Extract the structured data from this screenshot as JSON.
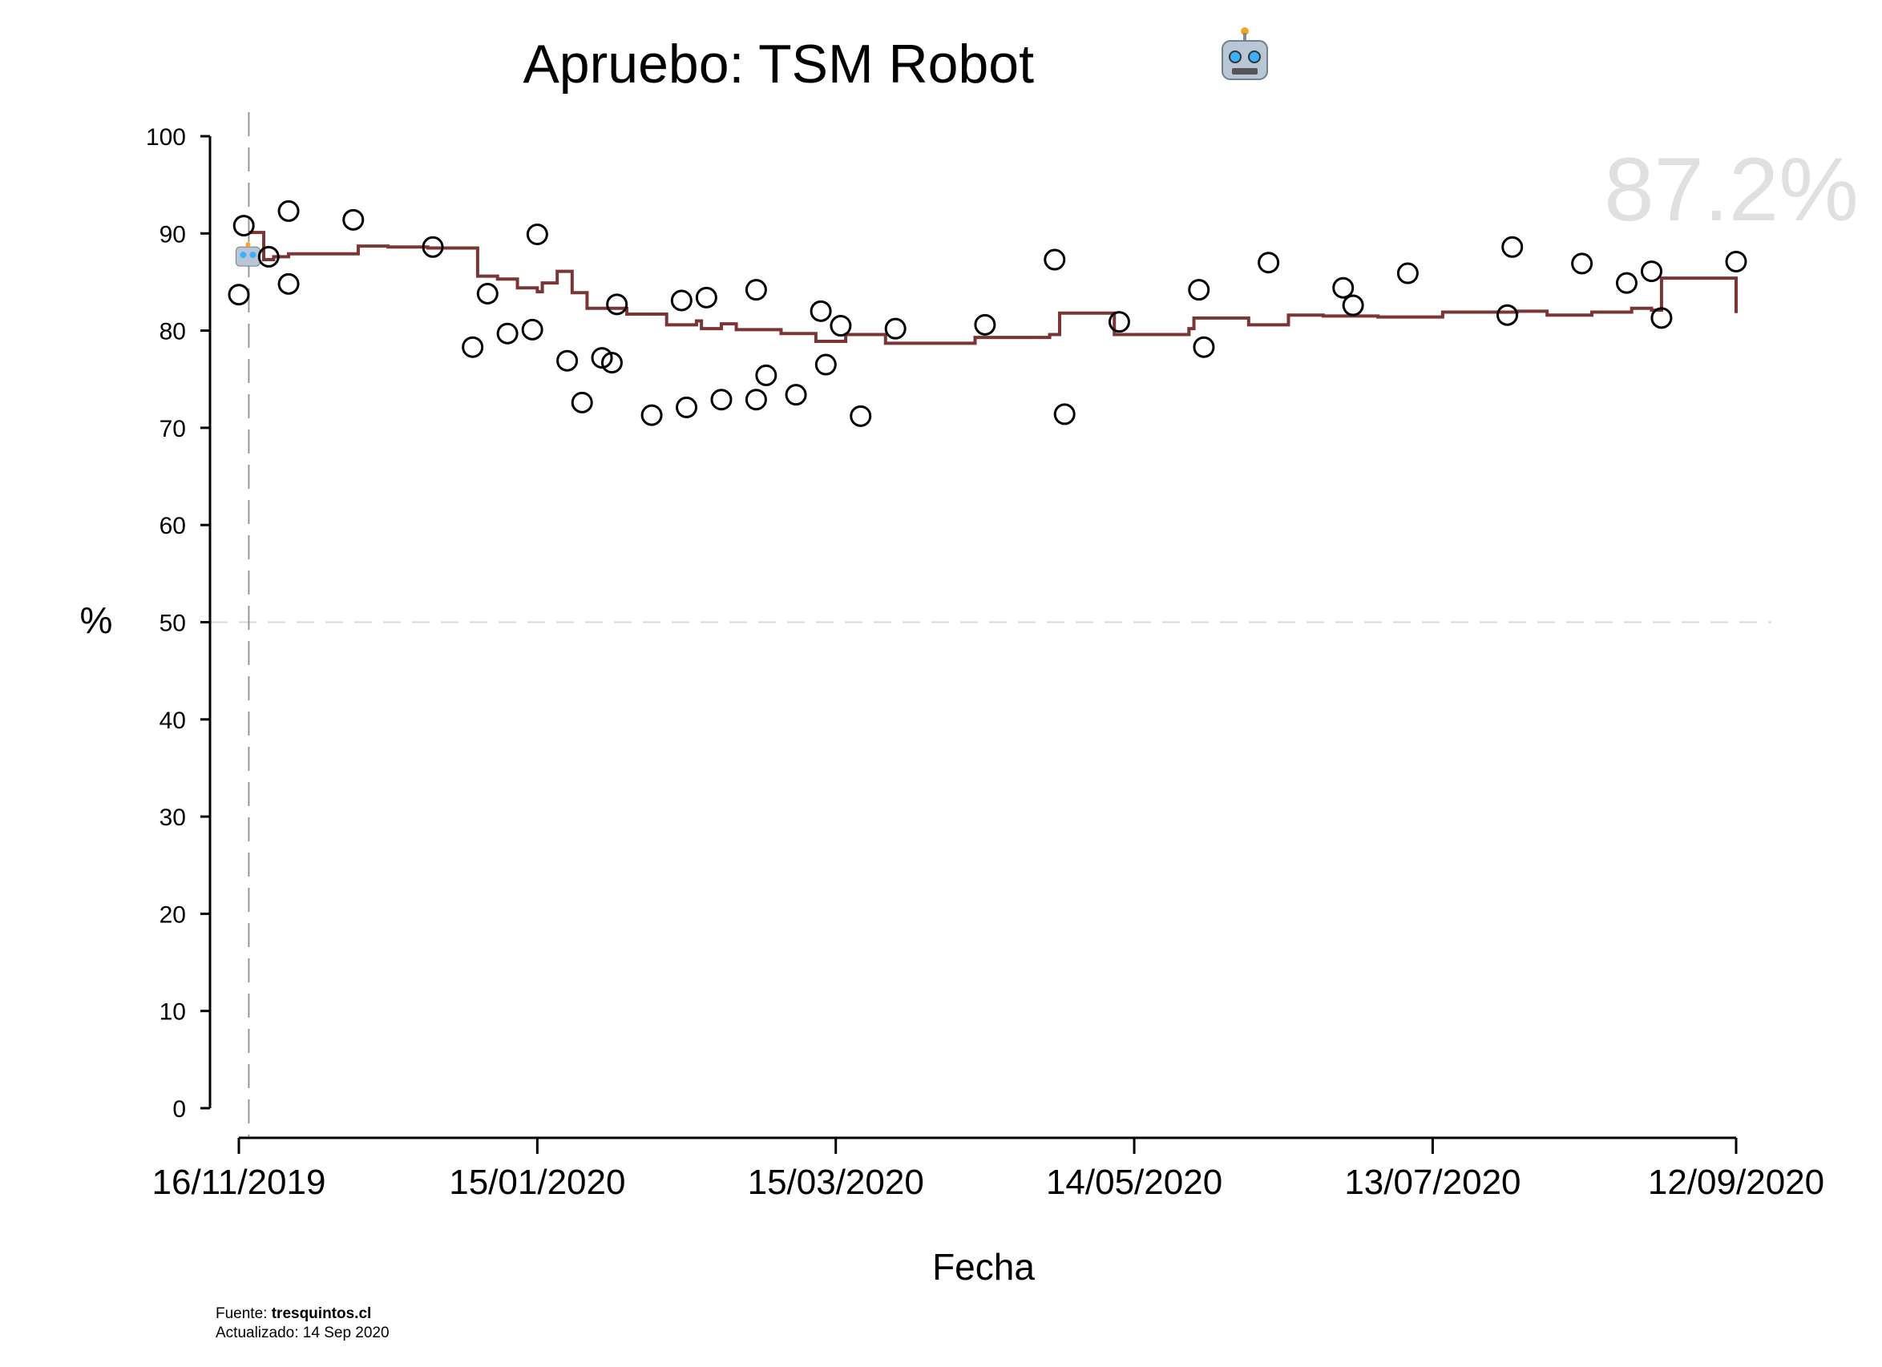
{
  "chart_data": {
    "type": "scatter",
    "title": "Apruebo: TSM Robot",
    "title_icon": "robot-icon",
    "xlabel": "Fecha",
    "ylabel": "%",
    "ylim": [
      0,
      100
    ],
    "xlim": [
      "2019-11-16",
      "2020-09-12"
    ],
    "yticks": [
      0,
      10,
      20,
      30,
      40,
      50,
      60,
      70,
      80,
      90,
      100
    ],
    "xticks": [
      "2019-11-16",
      "2020-01-15",
      "2020-03-15",
      "2020-05-14",
      "2020-07-13",
      "2020-09-12"
    ],
    "xtick_labels": [
      "16/11/2019",
      "15/01/2020",
      "15/03/2020",
      "14/05/2020",
      "13/07/2020",
      "12/09/2020"
    ],
    "reference_line_y": 50,
    "vertical_line_x": "2019-11-18",
    "highlight_value": "87.2%",
    "colors": {
      "line": "#7a3535",
      "points": "#000000",
      "reference": "#d9d9d9",
      "vline": "#999999",
      "watermark": "#e0e0e0"
    },
    "series": [
      {
        "kind": "points",
        "x": [
          "2019-11-16",
          "2019-11-17",
          "2019-11-22",
          "2019-11-26",
          "2019-11-26",
          "2019-12-09",
          "2019-12-25",
          "2020-01-02",
          "2020-01-05",
          "2020-01-09",
          "2020-01-14",
          "2020-01-15",
          "2020-01-21",
          "2020-01-24",
          "2020-01-28",
          "2020-01-30",
          "2020-01-31",
          "2020-02-07",
          "2020-02-13",
          "2020-02-14",
          "2020-02-18",
          "2020-02-21",
          "2020-02-28",
          "2020-02-28",
          "2020-03-01",
          "2020-03-07",
          "2020-03-12",
          "2020-03-13",
          "2020-03-16",
          "2020-03-20",
          "2020-03-27",
          "2020-04-14",
          "2020-04-28",
          "2020-04-30",
          "2020-05-11",
          "2020-05-27",
          "2020-05-28",
          "2020-06-10",
          "2020-06-25",
          "2020-06-27",
          "2020-07-08",
          "2020-07-28",
          "2020-07-29",
          "2020-08-12",
          "2020-08-21",
          "2020-08-26",
          "2020-08-28",
          "2020-09-12"
        ],
        "y": [
          83.7,
          90.8,
          87.6,
          92.3,
          84.8,
          91.4,
          88.6,
          78.3,
          83.8,
          79.7,
          80.1,
          89.9,
          76.9,
          72.6,
          77.2,
          76.7,
          82.7,
          71.3,
          83.1,
          72.1,
          83.4,
          72.9,
          84.2,
          72.9,
          75.4,
          73.4,
          82.0,
          76.5,
          80.5,
          71.2,
          80.2,
          80.6,
          87.3,
          71.4,
          80.9,
          84.2,
          78.3,
          87.0,
          84.4,
          82.6,
          85.9,
          81.6,
          88.6,
          86.9,
          84.9,
          86.1,
          81.3,
          87.1
        ]
      },
      {
        "kind": "step",
        "x": [
          "2019-11-18",
          "2019-11-21",
          "2019-11-23",
          "2019-11-26",
          "2019-12-10",
          "2019-12-16",
          "2019-12-24",
          "2020-01-03",
          "2020-01-07",
          "2020-01-11",
          "2020-01-15",
          "2020-01-16",
          "2020-01-19",
          "2020-01-22",
          "2020-01-25",
          "2020-02-02",
          "2020-02-10",
          "2020-02-16",
          "2020-02-17",
          "2020-02-21",
          "2020-02-24",
          "2020-03-04",
          "2020-03-11",
          "2020-03-17",
          "2020-03-25",
          "2020-04-12",
          "2020-04-27",
          "2020-04-29",
          "2020-05-10",
          "2020-05-25",
          "2020-05-26",
          "2020-06-06",
          "2020-06-14",
          "2020-06-21",
          "2020-07-02",
          "2020-07-15",
          "2020-07-30",
          "2020-08-05",
          "2020-08-14",
          "2020-08-22",
          "2020-08-26",
          "2020-08-28",
          "2020-09-12"
        ],
        "y": [
          90.1,
          87.3,
          87.6,
          87.9,
          88.7,
          88.6,
          88.5,
          85.6,
          85.3,
          84.4,
          84.0,
          84.9,
          86.1,
          83.9,
          82.3,
          81.7,
          80.6,
          81.0,
          80.2,
          80.7,
          80.1,
          79.7,
          78.9,
          79.6,
          78.7,
          79.3,
          79.6,
          81.8,
          79.6,
          80.2,
          81.3,
          80.6,
          81.6,
          81.5,
          81.4,
          81.9,
          82.0,
          81.6,
          81.9,
          82.3,
          82.1,
          85.4,
          81.8
        ]
      }
    ]
  },
  "footer": {
    "source_label": "Fuente:",
    "source_value": "tresquintos.cl",
    "updated": "Actualizado: 14 Sep 2020"
  }
}
